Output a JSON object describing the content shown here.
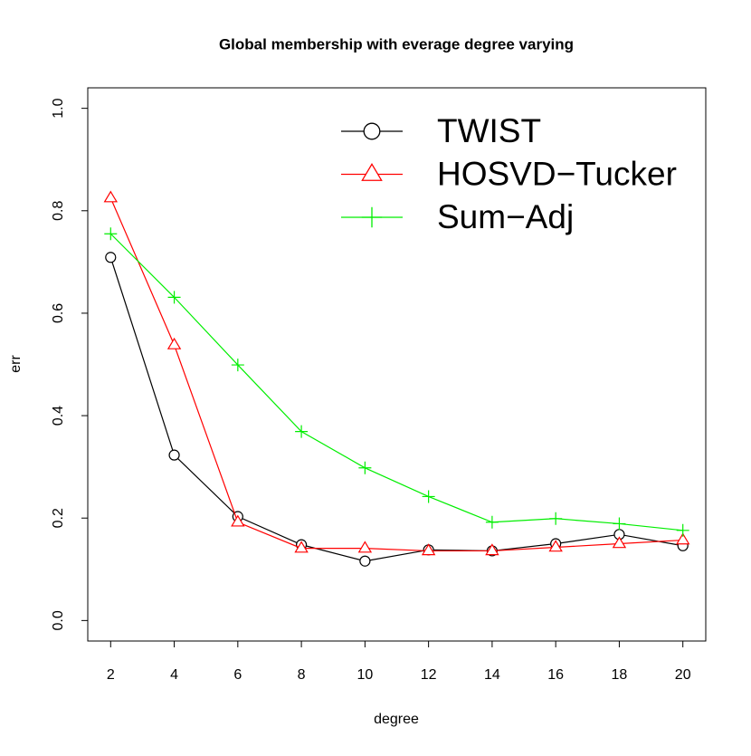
{
  "chart_data": {
    "type": "line",
    "title": "Global membership with everage degree varying",
    "x_label": "degree",
    "y_label": "err",
    "x": [
      2,
      4,
      6,
      8,
      10,
      12,
      14,
      16,
      18,
      20
    ],
    "series": [
      {
        "name": "TWIST",
        "color": "#000000",
        "marker": "circle",
        "values": [
          0.709,
          0.323,
          0.203,
          0.148,
          0.116,
          0.138,
          0.136,
          0.15,
          0.168,
          0.146
        ]
      },
      {
        "name": "HOSVD−Tucker",
        "color": "#ff0000",
        "marker": "triangle",
        "values": [
          0.825,
          0.538,
          0.192,
          0.141,
          0.141,
          0.136,
          0.136,
          0.143,
          0.15,
          0.157
        ]
      },
      {
        "name": "Sum−Adj",
        "color": "#00ee00",
        "marker": "plus",
        "values": [
          0.755,
          0.631,
          0.499,
          0.369,
          0.298,
          0.242,
          0.192,
          0.199,
          0.189,
          0.176
        ]
      }
    ],
    "xlim": [
      1.28,
      20.72
    ],
    "ylim": [
      -0.04,
      1.04
    ],
    "xticks": [
      2,
      4,
      6,
      8,
      10,
      12,
      14,
      16,
      18,
      20
    ],
    "yticks": [
      {
        "value": 0,
        "label": "0.0"
      },
      {
        "value": 0.2,
        "label": "0.2"
      },
      {
        "value": 0.4,
        "label": "0.4"
      },
      {
        "value": 0.6,
        "label": "0.6"
      },
      {
        "value": 0.8,
        "label": "0.8"
      },
      {
        "value": 1,
        "label": "1.0"
      }
    ],
    "legend": "topright"
  }
}
